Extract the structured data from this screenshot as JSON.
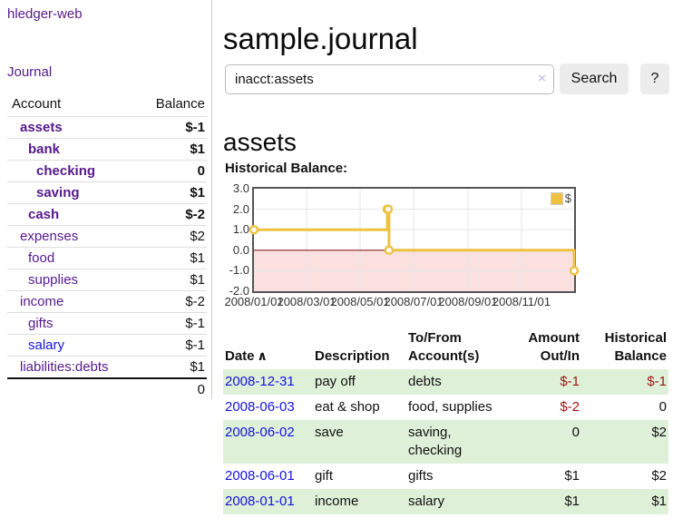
{
  "app": {
    "brand": "hledger-web",
    "nav_journal": "Journal"
  },
  "sidebar": {
    "header": {
      "account": "Account",
      "balance": "Balance"
    },
    "accounts": [
      {
        "name": "assets",
        "level": 1,
        "bold": true,
        "balance": "$-1",
        "balance_style": "neg-strong"
      },
      {
        "name": "bank",
        "level": 2,
        "bold": true,
        "balance": "$1",
        "balance_style": "normal"
      },
      {
        "name": "checking",
        "level": 3,
        "bold": true,
        "balance": "0",
        "balance_style": "normal"
      },
      {
        "name": "saving",
        "level": 3,
        "bold": true,
        "balance": "$1",
        "balance_style": "normal"
      },
      {
        "name": "cash",
        "level": 2,
        "bold": true,
        "balance": "$-2",
        "balance_style": "neg-strong"
      },
      {
        "name": "expenses",
        "level": 1,
        "bold": false,
        "balance": "$2",
        "balance_style": "normal"
      },
      {
        "name": "food",
        "level": 2,
        "bold": false,
        "balance": "$1",
        "balance_style": "normal"
      },
      {
        "name": "supplies",
        "level": 2,
        "bold": false,
        "balance": "$1",
        "balance_style": "normal"
      },
      {
        "name": "income",
        "level": 1,
        "bold": false,
        "balance": "$-2",
        "balance_style": "neg-muted"
      },
      {
        "name": "gifts",
        "level": 2,
        "bold": false,
        "balance": "$-1",
        "balance_style": "neg-muted"
      },
      {
        "name": "salary",
        "level": 2,
        "bold": false,
        "balance": "$-1",
        "balance_style": "neg-muted",
        "link_style": "unvisited"
      },
      {
        "name": "liabilities:debts",
        "level": 1,
        "bold": false,
        "balance": "$1",
        "balance_style": "normal"
      }
    ],
    "total": "0"
  },
  "header": {
    "title": "sample.journal"
  },
  "search": {
    "value": "inacct:assets",
    "clear_icon": "×",
    "button": "Search",
    "help_button": "?"
  },
  "account_view": {
    "heading": "assets",
    "chart_label": "Historical Balance:"
  },
  "chart_data": {
    "type": "line",
    "step": true,
    "title": "Historical Balance",
    "legend": [
      {
        "label": "$",
        "color": "#edc240"
      }
    ],
    "legend_position": "top-right",
    "x_range": [
      "2008-01-01",
      "2008-12-31"
    ],
    "ylim": [
      -2,
      3
    ],
    "y_ticks": [
      "3.0",
      "2.0",
      "1.0",
      "0.0",
      "-1.0",
      "-2.0"
    ],
    "x_ticks": [
      {
        "date": "2008-01-01",
        "label": "2008/01/01"
      },
      {
        "date": "2008-03-01",
        "label": "2008/03/01"
      },
      {
        "date": "2008-05-01",
        "label": "2008/05/01"
      },
      {
        "date": "2008-07-01",
        "label": "2008/07/01"
      },
      {
        "date": "2008-09-01",
        "label": "2008/09/01"
      },
      {
        "date": "2008-11-01",
        "label": "2008/11/01"
      }
    ],
    "series": [
      {
        "name": "$",
        "points": [
          {
            "date": "2008-01-01",
            "value": 1
          },
          {
            "date": "2008-06-01",
            "value": 2
          },
          {
            "date": "2008-06-02",
            "value": 2
          },
          {
            "date": "2008-06-03",
            "value": 0
          },
          {
            "date": "2008-12-31",
            "value": -1
          }
        ]
      }
    ],
    "grid": true,
    "negative_region_shaded": true,
    "colors": {
      "line": "#edc240",
      "negative_fill": "#fbe0e0",
      "zero_line": "#8b2020",
      "gridline": "#e6e6e6"
    }
  },
  "transactions": {
    "columns": [
      {
        "label": "Date",
        "sort_icon": "∧",
        "align": "left"
      },
      {
        "label": "Description",
        "align": "left"
      },
      {
        "label": "To/From Account(s)",
        "align": "left"
      },
      {
        "label": "Amount Out/In",
        "align": "right"
      },
      {
        "label": "Historical Balance",
        "align": "right"
      }
    ],
    "rows": [
      {
        "date": "2008-12-31",
        "description": "pay off",
        "accounts": "debts",
        "amount": "$-1",
        "amount_neg": true,
        "balance": "$-1",
        "balance_neg": true,
        "shaded": true
      },
      {
        "date": "2008-06-03",
        "description": "eat & shop",
        "accounts": "food, supplies",
        "amount": "$-2",
        "amount_neg": true,
        "balance": "0",
        "balance_neg": false,
        "shaded": false
      },
      {
        "date": "2008-06-02",
        "description": "save",
        "accounts": "saving, checking",
        "amount": "0",
        "amount_neg": false,
        "balance": "$2",
        "balance_neg": false,
        "shaded": true
      },
      {
        "date": "2008-06-01",
        "description": "gift",
        "accounts": "gifts",
        "amount": "$1",
        "amount_neg": false,
        "balance": "$2",
        "balance_neg": false,
        "shaded": false
      },
      {
        "date": "2008-01-01",
        "description": "income",
        "accounts": "salary",
        "amount": "$1",
        "amount_neg": false,
        "balance": "$1",
        "balance_neg": false,
        "shaded": true
      }
    ]
  },
  "colors": {
    "link_visited_purple": "#551a8b",
    "link_unvisited_blue": "#1414dd",
    "negative_strong": "#9d1414",
    "negative_muted": "#b87c7c",
    "row_stripe_green": "#dff0d8",
    "series_gold": "#edc240"
  }
}
